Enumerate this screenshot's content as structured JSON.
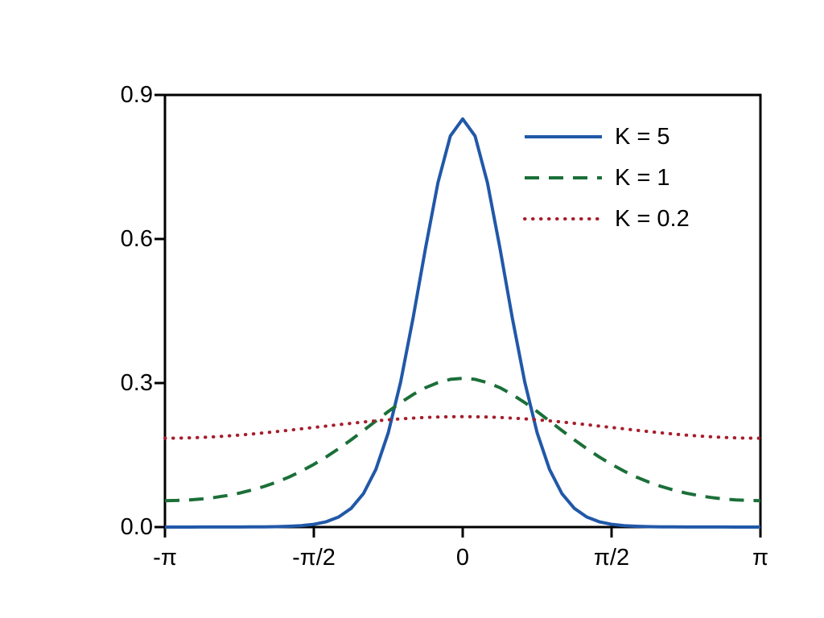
{
  "chart_data": {
    "type": "line",
    "title": "",
    "xlabel": "",
    "ylabel": "",
    "ylim": [
      0,
      0.9
    ],
    "xlim_over_pi": [
      -1,
      1
    ],
    "x_tick_positions_over_pi": [
      -1,
      -0.5,
      0,
      0.5,
      1
    ],
    "x_tick_labels": [
      "-π",
      "-π/2",
      "0",
      "π/2",
      "π"
    ],
    "y_tick_values": [
      0,
      0.3,
      0.6,
      0.9
    ],
    "y_tick_labels": [
      "0.0",
      "0.3",
      "0.6",
      "0.9"
    ],
    "axis_color": "#000000",
    "grid": false,
    "legend": {
      "position": "upper-right",
      "frame": false
    },
    "x_over_pi": [
      -1,
      -0.9583,
      -0.9167,
      -0.875,
      -0.8333,
      -0.7917,
      -0.75,
      -0.7083,
      -0.6667,
      -0.625,
      -0.5833,
      -0.5417,
      -0.5,
      -0.4583,
      -0.4167,
      -0.375,
      -0.3333,
      -0.2917,
      -0.25,
      -0.2083,
      -0.1667,
      -0.125,
      -0.0833,
      -0.0417,
      0,
      0.0417,
      0.0833,
      0.125,
      0.1667,
      0.2083,
      0.25,
      0.2917,
      0.3333,
      0.375,
      0.4167,
      0.4583,
      0.5,
      0.5417,
      0.5833,
      0.625,
      0.6667,
      0.7083,
      0.75,
      0.7917,
      0.8333,
      0.875,
      0.9167,
      0.9583,
      1
    ],
    "series": [
      {
        "name": "K = 5",
        "color": "#2158a8",
        "style": "solid",
        "values": [
          0.0,
          0.0,
          0.0,
          0.0001,
          0.0001,
          0.0001,
          0.0002,
          0.0003,
          0.0005,
          0.0008,
          0.0016,
          0.003,
          0.0057,
          0.011,
          0.0209,
          0.0388,
          0.0698,
          0.1202,
          0.1965,
          0.3024,
          0.435,
          0.5809,
          0.7168,
          0.8143,
          0.85,
          0.8143,
          0.7168,
          0.5809,
          0.435,
          0.3024,
          0.1965,
          0.1202,
          0.0698,
          0.0388,
          0.0209,
          0.011,
          0.0057,
          0.003,
          0.0016,
          0.0008,
          0.0005,
          0.0003,
          0.0002,
          0.0001,
          0.0001,
          0.0001,
          0.0,
          0.0,
          0.0
        ]
      },
      {
        "name": "K = 1",
        "color": "#1b6f38",
        "style": "dashed",
        "values": [
          0.055,
          0.0554,
          0.0566,
          0.0587,
          0.0617,
          0.0657,
          0.0708,
          0.0771,
          0.0847,
          0.0937,
          0.1043,
          0.1166,
          0.1305,
          0.1461,
          0.1632,
          0.1817,
          0.2011,
          0.2209,
          0.2406,
          0.2592,
          0.276,
          0.2902,
          0.3009,
          0.3077,
          0.3099,
          0.3077,
          0.3009,
          0.2902,
          0.276,
          0.2592,
          0.2406,
          0.2209,
          0.2011,
          0.1817,
          0.1632,
          0.1461,
          0.1305,
          0.1166,
          0.1043,
          0.0937,
          0.0847,
          0.0771,
          0.0708,
          0.0657,
          0.0617,
          0.0587,
          0.0566,
          0.0554,
          0.055
        ]
      },
      {
        "name": "K = 0.2",
        "color": "#a51f2c",
        "style": "dotted",
        "values": [
          0.185,
          0.1852,
          0.1858,
          0.1867,
          0.188,
          0.1897,
          0.1916,
          0.1938,
          0.1963,
          0.1989,
          0.2017,
          0.2046,
          0.2075,
          0.2104,
          0.2133,
          0.2161,
          0.2188,
          0.2212,
          0.2234,
          0.2254,
          0.227,
          0.2283,
          0.2292,
          0.2298,
          0.23,
          0.2298,
          0.2292,
          0.2283,
          0.227,
          0.2254,
          0.2234,
          0.2212,
          0.2188,
          0.2161,
          0.2133,
          0.2104,
          0.2075,
          0.2046,
          0.2017,
          0.1989,
          0.1963,
          0.1938,
          0.1916,
          0.1897,
          0.188,
          0.1867,
          0.1858,
          0.1852,
          0.185
        ]
      }
    ]
  }
}
